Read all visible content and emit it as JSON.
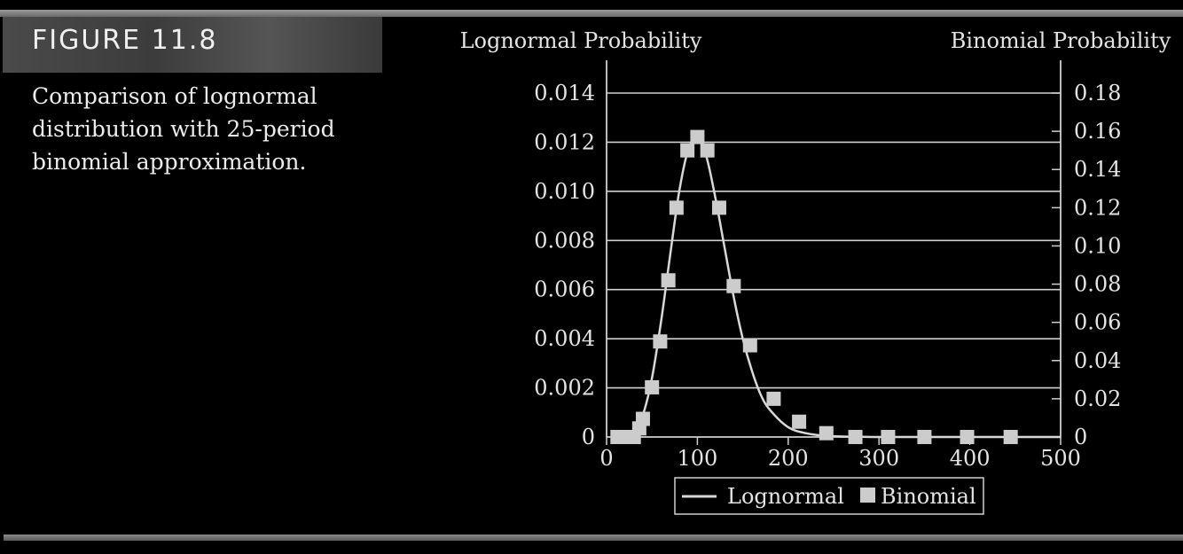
{
  "figure": {
    "label": "FIGURE 11.8",
    "caption": "Comparison of lognormal distribution with 25-period binomial approximation."
  },
  "colors": {
    "background": "#000000",
    "line": "#d8d8d8",
    "marker": "#cccccc",
    "grid": "#d0d0d0",
    "text": "#e4e4e4"
  },
  "chart_data": {
    "type": "line",
    "title": "",
    "ylabel": "Lognormal Probability",
    "y2label": "Binomial Probability",
    "xlim": [
      0,
      500
    ],
    "ylim": [
      0,
      0.014
    ],
    "y2lim": [
      0,
      0.18
    ],
    "xticks": [
      "0",
      "100",
      "200",
      "300",
      "400",
      "500"
    ],
    "xtick_values": [
      0,
      100,
      200,
      300,
      400,
      500
    ],
    "yticks": [
      "0",
      "0.002",
      "0.004",
      "0.006",
      "0.008",
      "0.010",
      "0.012",
      "0.014"
    ],
    "ytick_values": [
      0,
      0.002,
      0.004,
      0.006,
      0.008,
      0.01,
      0.012,
      0.014
    ],
    "y2ticks": [
      "0",
      "0.02",
      "0.04",
      "0.06",
      "0.08",
      "0.10",
      "0.12",
      "0.14",
      "0.16",
      "0.18"
    ],
    "y2tick_values": [
      0,
      0.02,
      0.04,
      0.06,
      0.08,
      0.1,
      0.12,
      0.14,
      0.16,
      0.18
    ],
    "grid": "horizontal",
    "legend_position": "bottom",
    "series": [
      {
        "name": "Lognormal",
        "axis": "left",
        "style": "line",
        "x": [
          10,
          20,
          30,
          40,
          50,
          60,
          70,
          80,
          90,
          100,
          110,
          120,
          130,
          140,
          150,
          160,
          170,
          180,
          200,
          220,
          240,
          260,
          280,
          300,
          350,
          400,
          450,
          500
        ],
        "y": [
          0,
          2e-05,
          0.0002,
          0.0009,
          0.0024,
          0.0047,
          0.0074,
          0.01,
          0.0117,
          0.0122,
          0.0114,
          0.0097,
          0.0077,
          0.0057,
          0.004,
          0.0027,
          0.0017,
          0.0011,
          0.0004,
          0.00015,
          5e-05,
          2e-05,
          1e-05,
          0,
          0,
          0,
          0,
          0
        ]
      },
      {
        "name": "Binomial",
        "axis": "right",
        "style": "marker",
        "x": [
          12,
          18,
          25,
          30,
          36,
          40,
          50,
          59,
          68,
          77,
          89,
          100,
          111,
          124,
          140,
          158,
          184,
          212,
          242,
          274,
          310,
          350,
          397,
          445
        ],
        "y": [
          0,
          0,
          0,
          0,
          0.0045,
          0.0095,
          0.026,
          0.05,
          0.082,
          0.12,
          0.15,
          0.157,
          0.15,
          0.12,
          0.079,
          0.048,
          0.02,
          0.008,
          0.002,
          0,
          0,
          0,
          0,
          0
        ]
      }
    ]
  }
}
